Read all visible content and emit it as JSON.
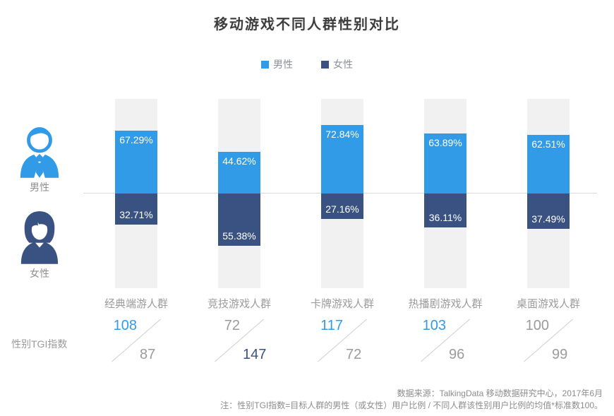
{
  "title": "移动游戏不同人群性别对比",
  "legend": {
    "male": "男性",
    "female": "女性"
  },
  "side": {
    "male_label": "男性",
    "female_label": "女性"
  },
  "tgi_caption": "性别TGI指数",
  "footer": {
    "source": "数据来源：TalkingData 移动数据研究中心，2017年6月",
    "note": "注：性别TGI指数=目标人群的男性（或女性）用户比例 / 不同人群该性别用户比例的均值*标准数100。"
  },
  "colors": {
    "male": "#319BE8",
    "female": "#3A5282",
    "track": "#F1F1F1",
    "baseline": "#DBDBDB",
    "muted": "#9B9B9B",
    "title": "#3D3D3D",
    "footer": "#8C8C8C"
  },
  "chart_data": {
    "type": "bar",
    "stacked": true,
    "orientation": "diverging-vertical",
    "title": "移动游戏不同人群性别对比",
    "legend_position": "top-center",
    "ylim": [
      0,
      100
    ],
    "unit": "%",
    "categories": [
      "经典端游人群",
      "竞技游戏人群",
      "卡牌游戏人群",
      "热播剧游戏人群",
      "桌面游戏人群"
    ],
    "series": [
      {
        "name": "男性",
        "values": [
          67.29,
          44.62,
          72.84,
          63.89,
          62.51
        ]
      },
      {
        "name": "女性",
        "values": [
          32.71,
          55.38,
          27.16,
          36.11,
          37.49
        ]
      }
    ],
    "tgi_index": {
      "label": "性别TGI指数",
      "male": [
        108,
        72,
        117,
        103,
        100
      ],
      "female": [
        87,
        147,
        72,
        96,
        99
      ]
    },
    "points": [
      {
        "category": "经典端游人群",
        "male_pct": 67.29,
        "male_label": "67.29%",
        "female_pct": 32.71,
        "female_label": "32.71%",
        "male_tgi": 108,
        "female_tgi": 87
      },
      {
        "category": "竞技游戏人群",
        "male_pct": 44.62,
        "male_label": "44.62%",
        "female_pct": 55.38,
        "female_label": "55.38%",
        "male_tgi": 72,
        "female_tgi": 147
      },
      {
        "category": "卡牌游戏人群",
        "male_pct": 72.84,
        "male_label": "72.84%",
        "female_pct": 27.16,
        "female_label": "27.16%",
        "male_tgi": 117,
        "female_tgi": 72
      },
      {
        "category": "热播剧游戏人群",
        "male_pct": 63.89,
        "male_label": "63.89%",
        "female_pct": 36.11,
        "female_label": "36.11%",
        "male_tgi": 103,
        "female_tgi": 96
      },
      {
        "category": "桌面游戏人群",
        "male_pct": 62.51,
        "male_label": "62.51%",
        "female_pct": 37.49,
        "female_label": "37.49%",
        "male_tgi": 100,
        "female_tgi": 99
      }
    ]
  }
}
